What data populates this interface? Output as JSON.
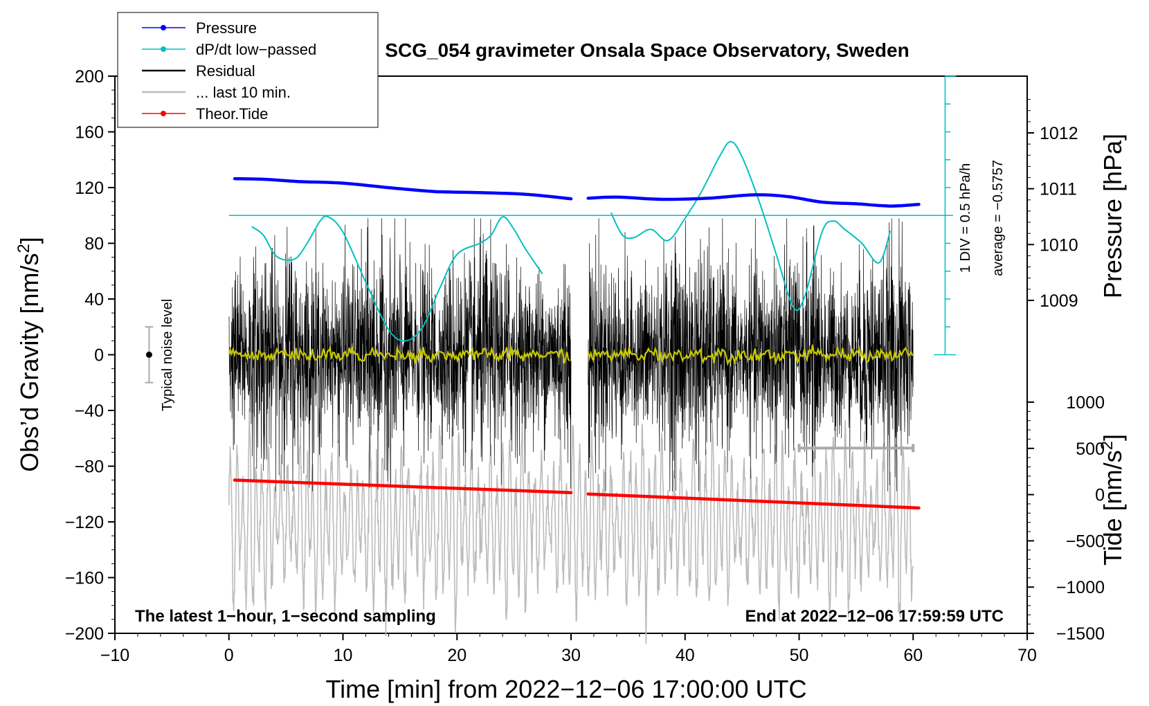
{
  "chart_data": {
    "type": "line",
    "title": "SCG_054 gravimeter Onsala Space Observatory, Sweden",
    "xlabel": "Time [min] from 2022−12−06 17:00:00 UTC",
    "ylabel_left": "Obs’d Gravity [nm/s",
    "ylabel_left_sup": "2",
    "ylabel_left_close": "]",
    "ylabel_right_pressure": "Pressure [hPa]",
    "ylabel_right_tide": "Tide [nm/s",
    "ylabel_right_tide_sup": "2",
    "ylabel_right_tide_close": "]",
    "xlim": [
      -10,
      70
    ],
    "ylim_left": [
      -200,
      200
    ],
    "x_ticks": [
      "−10",
      "0",
      "10",
      "20",
      "30",
      "40",
      "50",
      "60",
      "70"
    ],
    "y_left_ticks": [
      "200",
      "160",
      "120",
      "80",
      "40",
      "0",
      "−40",
      "−80",
      "−120",
      "−160",
      "−200"
    ],
    "pressure_ticks": [
      "1012",
      "1011",
      "1010",
      "1009"
    ],
    "pressure_tick_values": [
      1012,
      1011,
      1010,
      1009
    ],
    "tide_ticks": [
      "1000",
      "500",
      "0",
      "−500",
      "−1000",
      "−1500"
    ],
    "tide_tick_values": [
      1000,
      500,
      0,
      -500,
      -1000,
      -1500
    ],
    "legend": [
      {
        "label": "Pressure",
        "color": "#0000ff",
        "marker": true
      },
      {
        "label": "dP/dt low−passed",
        "color": "#00c0c0",
        "marker": true
      },
      {
        "label": "Residual",
        "color": "#000000",
        "marker": false
      },
      {
        "label": "... last 10 min.",
        "color": "#bbbbbb",
        "marker": false
      },
      {
        "label": "Theor.Tide",
        "color": "#ff0000",
        "marker": true
      }
    ],
    "note_left": "The latest 1−hour, 1−second sampling",
    "note_right": "End at 2022−12−06 17:59:59 UTC",
    "noise_label": "Typical noise level",
    "noise_bar": {
      "x": -7,
      "center": 0,
      "half_range": 20
    },
    "dpdt_scale_label": "1 DIV = 0.5 hPa/h",
    "dpdt_average_label": "average = −0.5757",
    "pressure_series": {
      "name": "Pressure",
      "color": "#0000ff",
      "segments": [
        {
          "x": [
            0.5,
            3,
            6,
            10,
            14,
            18,
            22,
            26,
            30
          ],
          "y": [
            1011.18,
            1011.17,
            1011.13,
            1011.1,
            1011.02,
            1010.95,
            1010.93,
            1010.9,
            1010.82
          ]
        },
        {
          "x": [
            31.5,
            34,
            38,
            42,
            46,
            49,
            52,
            55,
            58,
            60.5
          ],
          "y": [
            1010.83,
            1010.85,
            1010.81,
            1010.83,
            1010.89,
            1010.86,
            1010.76,
            1010.73,
            1010.69,
            1010.72
          ]
        }
      ]
    },
    "dpdt_series": {
      "name": "dP/dt low−passed",
      "color": "#00c0c0",
      "zero_y": 100,
      "segments": [
        {
          "x": [
            2,
            3,
            4,
            5,
            6,
            7,
            8,
            8.7,
            10,
            12,
            14,
            15.5,
            17,
            18.5,
            20,
            22,
            23,
            24,
            25,
            26,
            27.5
          ],
          "y": [
            92,
            86,
            72,
            68,
            70,
            82,
            96,
            99,
            88,
            52,
            18,
            10,
            20,
            48,
            72,
            80,
            86,
            99,
            90,
            76,
            58
          ]
        },
        {
          "x": [
            33.5,
            34.5,
            35.5,
            37,
            38.5,
            40,
            41.5,
            43,
            44,
            45,
            46.5,
            48,
            49.5,
            50.5,
            52,
            53,
            54,
            55.5,
            57,
            58
          ],
          "y": [
            102,
            86,
            84,
            90,
            82,
            98,
            118,
            142,
            153,
            142,
            110,
            72,
            34,
            42,
            88,
            96,
            90,
            80,
            66,
            89
          ]
        }
      ]
    },
    "residual_series": {
      "name": "Residual",
      "color": "#000000",
      "center": 0,
      "segments": [
        [
          0,
          30
        ],
        [
          31.5,
          60
        ]
      ]
    },
    "residual_smooth": {
      "name": "Residual (smoothed)",
      "color": "#c8c800"
    },
    "last10_series": {
      "name": "... last 10 min.",
      "color": "#bbbbbb",
      "center": -120
    },
    "last10_marker": {
      "x_start": 50,
      "x_end": 60,
      "y": -67
    },
    "tide_series": {
      "name": "Theor.Tide",
      "color": "#ff0000",
      "segments": [
        {
          "x": [
            0.5,
            30
          ],
          "y": [
            -90,
            -99
          ]
        },
        {
          "x": [
            31.5,
            60.5
          ],
          "y": [
            -100,
            -110
          ]
        }
      ]
    }
  }
}
